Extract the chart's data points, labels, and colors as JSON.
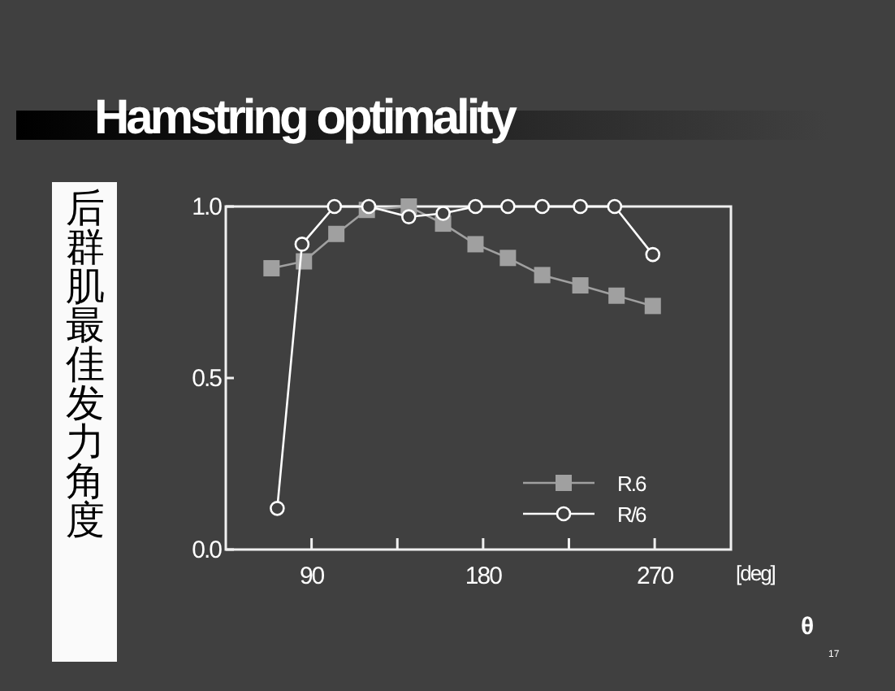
{
  "chart_data": {
    "type": "line",
    "title": "Hamstring optimality",
    "ylabel": "后群肌最佳发力角度",
    "xlabel": "[deg]",
    "annotations": [
      "θ",
      "17"
    ],
    "xlim": [
      45,
      310
    ],
    "xticks": [
      90,
      {
        "value": 135,
        "label": null
      },
      180,
      {
        "value": 225,
        "label": null
      },
      270
    ],
    "ylim": [
      0,
      1
    ],
    "yticks": [
      {
        "value": 0,
        "label": "0.0"
      },
      {
        "value": 0.5,
        "label": "0.5"
      },
      {
        "value": 1,
        "label": "1.0"
      }
    ],
    "legend": "bottom right",
    "grid": false,
    "line_style": "solid",
    "series": [
      {
        "name": "R.6",
        "color": "#a0a0a0",
        "marker": "square",
        "x": [
          69,
          86,
          103,
          119,
          141,
          159,
          176,
          193,
          211,
          231,
          250,
          269
        ],
        "values": [
          0.82,
          0.84,
          0.92,
          0.99,
          1.0,
          0.95,
          0.89,
          0.85,
          0.8,
          0.77,
          0.74,
          0.71
        ]
      },
      {
        "name": "R/6",
        "color": "#ffffff",
        "marker": "circle",
        "x": [
          72,
          85,
          102,
          120,
          141,
          159,
          176,
          193,
          211,
          231,
          249,
          269
        ],
        "values": [
          0.12,
          0.89,
          1.0,
          1.0,
          0.97,
          0.98,
          1.0,
          1.0,
          1.0,
          1.0,
          1.0,
          0.86
        ]
      }
    ]
  }
}
